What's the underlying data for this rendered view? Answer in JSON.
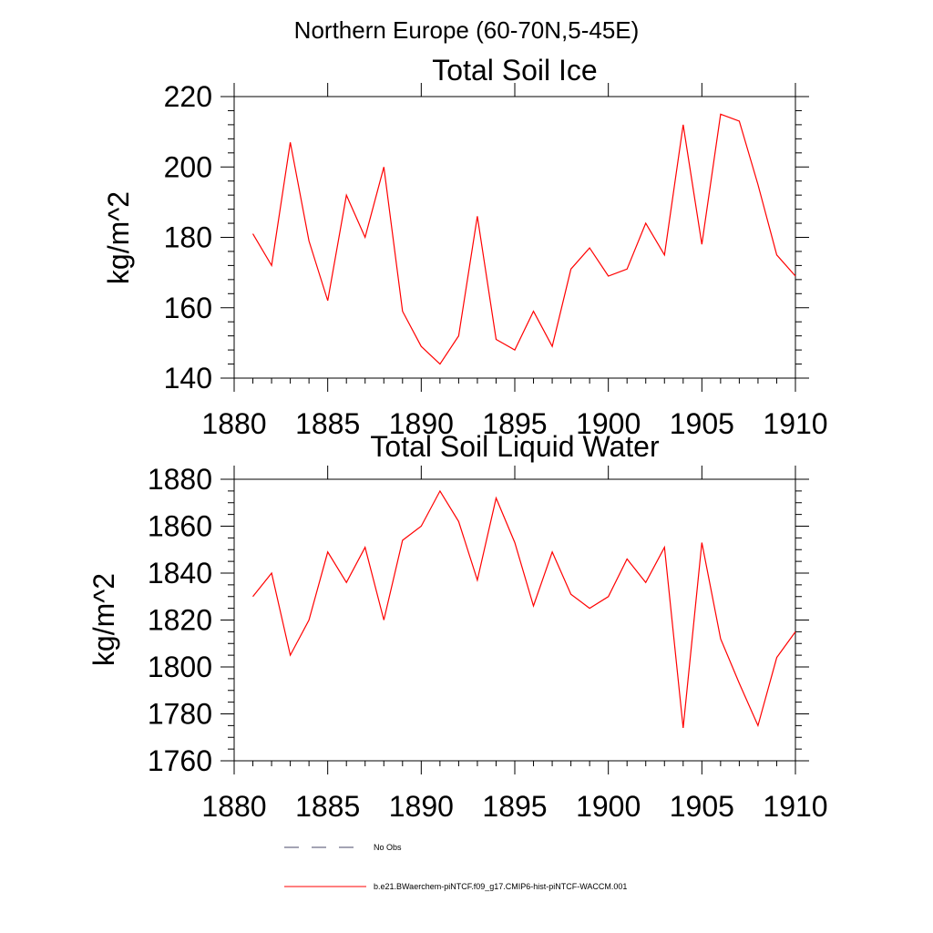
{
  "figure_title": "Northern Europe (60-70N,5-45E)",
  "legend": {
    "entries": [
      {
        "label": "No Obs",
        "style": "dashed",
        "color": "#4a4a6a"
      },
      {
        "label": "b.e21.BWaerchem-piNTCF.f09_g17.CMIP6-hist-piNTCF-WACCM.001",
        "style": "solid",
        "color": "#ff0000"
      }
    ]
  },
  "chart_data": [
    {
      "type": "line",
      "title": "Total Soil Ice",
      "xlabel": "",
      "ylabel": "kg/m^2",
      "xlim": [
        1880,
        1910
      ],
      "ylim": [
        140,
        220
      ],
      "xticks": [
        1880,
        1885,
        1890,
        1895,
        1900,
        1905,
        1910
      ],
      "yticks": [
        140,
        160,
        180,
        200,
        220
      ],
      "grid": false,
      "series": [
        {
          "color": "#ff0000",
          "x": [
            1881,
            1882,
            1883,
            1884,
            1885,
            1886,
            1887,
            1888,
            1889,
            1890,
            1891,
            1892,
            1893,
            1894,
            1895,
            1896,
            1897,
            1898,
            1899,
            1900,
            1901,
            1902,
            1903,
            1904,
            1905,
            1906,
            1907,
            1908,
            1909,
            1910
          ],
          "y": [
            181,
            172,
            207,
            179,
            162,
            192,
            180,
            200,
            159,
            149,
            144,
            152,
            186,
            151,
            148,
            159,
            149,
            171,
            177,
            169,
            171,
            184,
            175,
            212,
            178,
            215,
            213,
            195,
            175,
            169
          ]
        }
      ]
    },
    {
      "type": "line",
      "title": "Total Soil Liquid Water",
      "xlabel": "",
      "ylabel": "kg/m^2",
      "xlim": [
        1880,
        1910
      ],
      "ylim": [
        1760,
        1880
      ],
      "xticks": [
        1880,
        1885,
        1890,
        1895,
        1900,
        1905,
        1910
      ],
      "yticks": [
        1760,
        1780,
        1800,
        1820,
        1840,
        1860,
        1880
      ],
      "grid": false,
      "series": [
        {
          "color": "#ff0000",
          "x": [
            1881,
            1882,
            1883,
            1884,
            1885,
            1886,
            1887,
            1888,
            1889,
            1890,
            1891,
            1892,
            1893,
            1894,
            1895,
            1896,
            1897,
            1898,
            1899,
            1900,
            1901,
            1902,
            1903,
            1904,
            1905,
            1906,
            1907,
            1908,
            1909,
            1910
          ],
          "y": [
            1830,
            1840,
            1805,
            1820,
            1849,
            1836,
            1851,
            1820,
            1854,
            1860,
            1875,
            1862,
            1837,
            1872,
            1853,
            1826,
            1849,
            1831,
            1825,
            1830,
            1846,
            1836,
            1851,
            1774,
            1853,
            1812,
            1793,
            1775,
            1804,
            1815
          ]
        }
      ]
    }
  ]
}
